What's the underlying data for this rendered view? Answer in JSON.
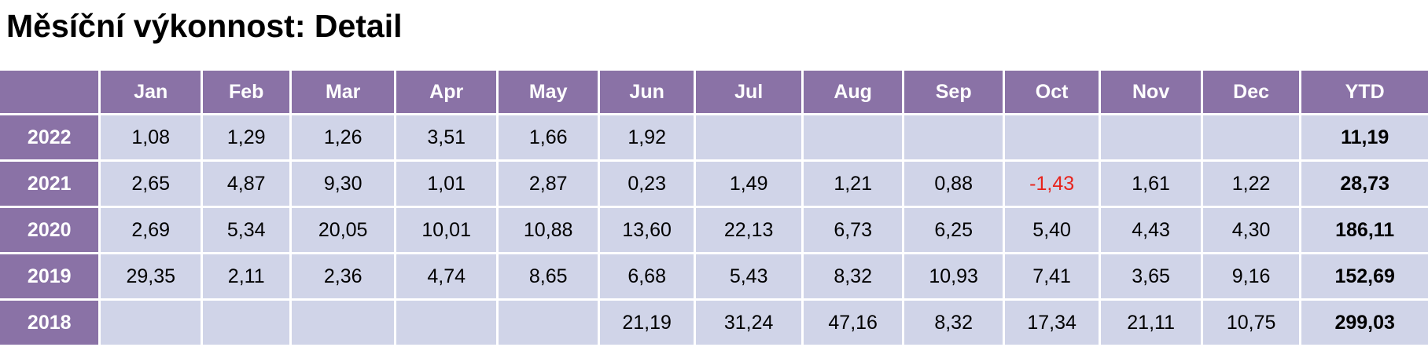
{
  "header": {
    "title": "Měsíční výkonnost: Detail"
  },
  "table": {
    "columns": [
      "Jan",
      "Feb",
      "Mar",
      "Apr",
      "May",
      "Jun",
      "Jul",
      "Aug",
      "Sep",
      "Oct",
      "Nov",
      "Dec",
      "YTD"
    ],
    "rows": [
      {
        "label": "2022",
        "months": [
          "1,08",
          "1,29",
          "1,26",
          "3,51",
          "1,66",
          "1,92",
          null,
          null,
          null,
          null,
          null,
          null
        ],
        "ytd": "11,19"
      },
      {
        "label": "2021",
        "months": [
          "2,65",
          "4,87",
          "9,30",
          "1,01",
          "2,87",
          "0,23",
          "1,49",
          "1,21",
          "0,88",
          "-1,43",
          "1,61",
          "1,22"
        ],
        "ytd": "28,73"
      },
      {
        "label": "2020",
        "months": [
          "2,69",
          "5,34",
          "20,05",
          "10,01",
          "10,88",
          "13,60",
          "22,13",
          "6,73",
          "6,25",
          "5,40",
          "4,43",
          "4,30"
        ],
        "ytd": "186,11"
      },
      {
        "label": "2019",
        "months": [
          "29,35",
          "2,11",
          "2,36",
          "4,74",
          "8,65",
          "6,68",
          "5,43",
          "8,32",
          "10,93",
          "7,41",
          "3,65",
          "9,16"
        ],
        "ytd": "152,69"
      },
      {
        "label": "2018",
        "months": [
          null,
          null,
          null,
          null,
          null,
          "21,19",
          "31,24",
          "47,16",
          "8,32",
          "17,34",
          "21,11",
          "10,75"
        ],
        "ytd": "299,03"
      }
    ]
  }
}
